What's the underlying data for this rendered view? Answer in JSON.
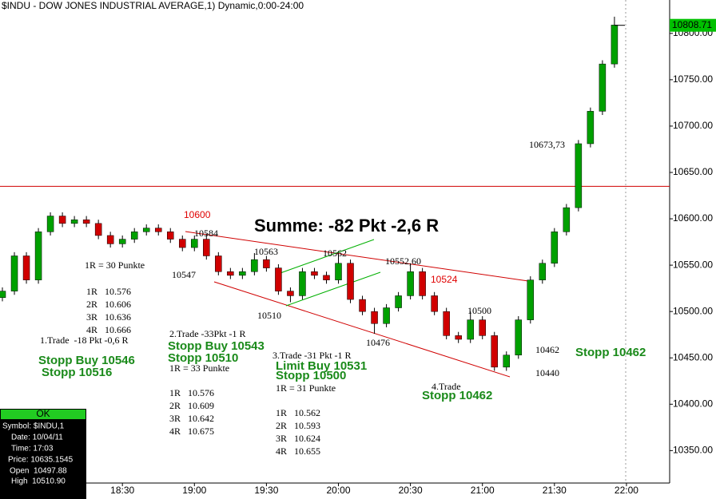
{
  "chart_data": {
    "type": "candlestick",
    "title": "$INDU - DOW JONES INDUSTRIAL AVERAGE,1) Dynamic,0:00-24:00",
    "x": [
      "17:40",
      "17:45",
      "17:50",
      "17:55",
      "18:00",
      "18:05",
      "18:10",
      "18:15",
      "18:20",
      "18:25",
      "18:30",
      "18:35",
      "18:40",
      "18:45",
      "18:50",
      "18:55",
      "19:00",
      "19:05",
      "19:10",
      "19:15",
      "19:20",
      "19:25",
      "19:30",
      "19:35",
      "19:40",
      "19:45",
      "19:50",
      "19:55",
      "20:00",
      "20:05",
      "20:10",
      "20:15",
      "20:20",
      "20:25",
      "20:30",
      "20:35",
      "20:40",
      "20:45",
      "20:50",
      "20:55",
      "21:00",
      "21:05",
      "21:10",
      "21:15",
      "21:20",
      "21:25",
      "21:30",
      "21:35",
      "21:40",
      "21:45",
      "21:50",
      "21:55"
    ],
    "open": [
      10515,
      10522,
      10560,
      10534,
      10586,
      10603,
      10595,
      10599,
      10595,
      10582,
      10573,
      10578,
      10586,
      10590,
      10586,
      10578,
      10569,
      10578,
      10560,
      10543,
      10539,
      10543,
      10556,
      10547,
      10522,
      10517,
      10543,
      10539,
      10534,
      10552,
      10513,
      10500,
      10487,
      10504,
      10517,
      10543,
      10517,
      10500,
      10474,
      10470,
      10491,
      10474,
      10440,
      10453,
      10491,
      10534,
      10552,
      10586,
      10612,
      10681,
      10716,
      10767
    ],
    "high": [
      10526,
      10564,
      10564,
      10590,
      10607,
      10607,
      10603,
      10603,
      10599,
      10586,
      10582,
      10590,
      10594,
      10594,
      10590,
      10582,
      10582,
      10584,
      10564,
      10547,
      10547,
      10563,
      10560,
      10551,
      10526,
      10547,
      10547,
      10543,
      10562,
      10556,
      10517,
      10504,
      10508,
      10521,
      10552,
      10547,
      10521,
      10504,
      10478,
      10500,
      10495,
      10478,
      10457,
      10495,
      10538,
      10556,
      10590,
      10616,
      10685,
      10720,
      10771,
      10818
    ],
    "low": [
      10511,
      10518,
      10530,
      10530,
      10582,
      10591,
      10591,
      10591,
      10578,
      10569,
      10569,
      10574,
      10582,
      10582,
      10574,
      10565,
      10565,
      10556,
      10539,
      10535,
      10535,
      10539,
      10543,
      10518,
      10510,
      10513,
      10535,
      10530,
      10530,
      10509,
      10496,
      10476,
      10483,
      10500,
      10513,
      10513,
      10496,
      10470,
      10466,
      10466,
      10470,
      10436,
      10436,
      10449,
      10487,
      10530,
      10548,
      10582,
      10608,
      10677,
      10712,
      10763
    ],
    "close": [
      10522,
      10560,
      10534,
      10586,
      10603,
      10595,
      10599,
      10595,
      10582,
      10573,
      10578,
      10586,
      10590,
      10586,
      10578,
      10569,
      10578,
      10560,
      10543,
      10539,
      10543,
      10556,
      10547,
      10522,
      10517,
      10543,
      10539,
      10534,
      10552,
      10513,
      10500,
      10487,
      10504,
      10517,
      10543,
      10517,
      10500,
      10474,
      10470,
      10491,
      10474,
      10440,
      10453,
      10491,
      10534,
      10552,
      10586,
      10612,
      10681,
      10716,
      10767,
      10809
    ],
    "up_color": "#00a000",
    "down_color": "#d00000",
    "xlim": [
      "17:39",
      "22:18"
    ],
    "xticks": [
      "18:00",
      "18:30",
      "19:00",
      "19:30",
      "20:00",
      "20:30",
      "21:00",
      "21:30",
      "22:00"
    ],
    "ylim": [
      10315,
      10836
    ],
    "yticks": [
      {
        "value": 10350,
        "label": "10350.00"
      },
      {
        "value": 10400,
        "label": "10400.00"
      },
      {
        "value": 10450,
        "label": "10450.00"
      },
      {
        "value": 10500,
        "label": "10500.00"
      },
      {
        "value": 10550,
        "label": "10550.00"
      },
      {
        "value": 10600,
        "label": "10600.00"
      },
      {
        "value": 10650,
        "label": "10650.00"
      },
      {
        "value": 10700,
        "label": "10700.00"
      },
      {
        "value": 10750,
        "label": "10750.00"
      },
      {
        "value": 10800,
        "label": "10800.00"
      }
    ],
    "hline": 10635,
    "hline_color": "#d00000",
    "last_price": 10808.71,
    "annotations": [
      "10600",
      "10584",
      "Summe: -82 Pkt -2,6 R",
      "10563",
      "10562",
      "10552,60",
      "10524",
      "1R = 30 Punkte",
      "10547",
      "1R   10.576",
      "2R   10.606",
      "3R   10.636",
      "4R   10.666",
      "1.Trade  -18 Pkt -0,6 R",
      "10510",
      "10500",
      "10476",
      "2.Trade -33Pkt -1 R",
      "Stopp Buy 10543",
      "Stopp 10510",
      "1R = 33 Punkte",
      "Stopp Buy 10546",
      "Stopp 10516",
      "3.Trade -31 Pkt -1 R",
      "Limit Buy 10531",
      "Stopp 10500",
      "1R = 31 Punkte",
      "1R   10.576",
      "2R   10.609",
      "3R   10.642",
      "4R   10.675",
      "1R   10.562",
      "2R   10.593",
      "3R   10.624",
      "4R   10.655",
      "4.Trade",
      "Stopp 10462",
      "10462",
      "10440",
      "Stopp 10462",
      "10673,73"
    ]
  },
  "data_window": {
    "button": "OK",
    "rows": [
      "Symbol: $INDU,1",
      "Date: 10/04/11",
      "Time: 17:03",
      "Price: 10635.1545",
      "Open  10497.88",
      "High  10510.90"
    ]
  }
}
